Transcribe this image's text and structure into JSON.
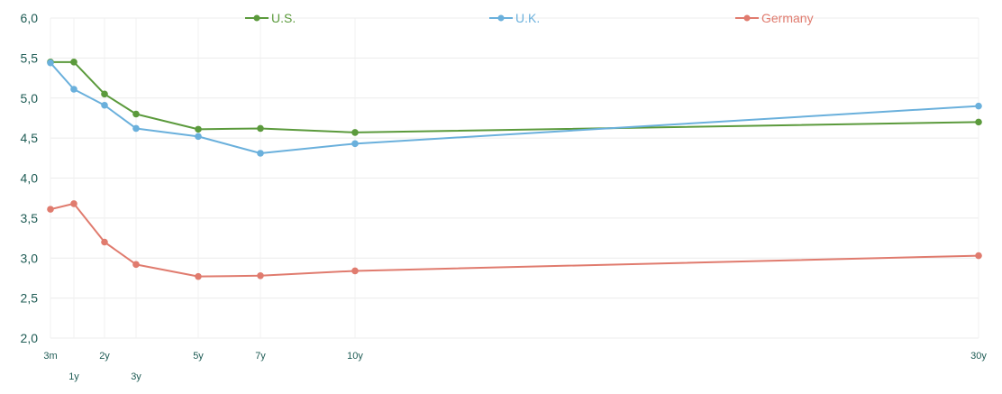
{
  "chart_data": {
    "type": "line",
    "title": "",
    "xlabel": "",
    "ylabel": "",
    "x": [
      0.25,
      1,
      2,
      3,
      5,
      7,
      10,
      30
    ],
    "x_tick_labels": [
      "3m",
      "1y",
      "2y",
      "3y",
      "5y",
      "7y",
      "10y",
      "30y"
    ],
    "ylim": [
      2.0,
      6.0
    ],
    "y_ticks": [
      "2,0",
      "2,5",
      "3,0",
      "3,5",
      "4,0",
      "4,5",
      "5,0",
      "5,5",
      "6,0"
    ],
    "grid": true,
    "legend_position": "top",
    "series": [
      {
        "name": "U.S.",
        "color": "#5b9a3c",
        "values": [
          5.45,
          5.45,
          5.05,
          4.8,
          4.61,
          4.62,
          4.57,
          4.7
        ]
      },
      {
        "name": "U.K.",
        "color": "#6ab0dc",
        "values": [
          5.44,
          5.11,
          4.91,
          4.62,
          4.52,
          4.31,
          4.43,
          4.9
        ]
      },
      {
        "name": "Germany",
        "color": "#e07b6e",
        "values": [
          3.61,
          3.68,
          3.2,
          2.92,
          2.77,
          2.78,
          2.84,
          3.03
        ]
      }
    ]
  }
}
